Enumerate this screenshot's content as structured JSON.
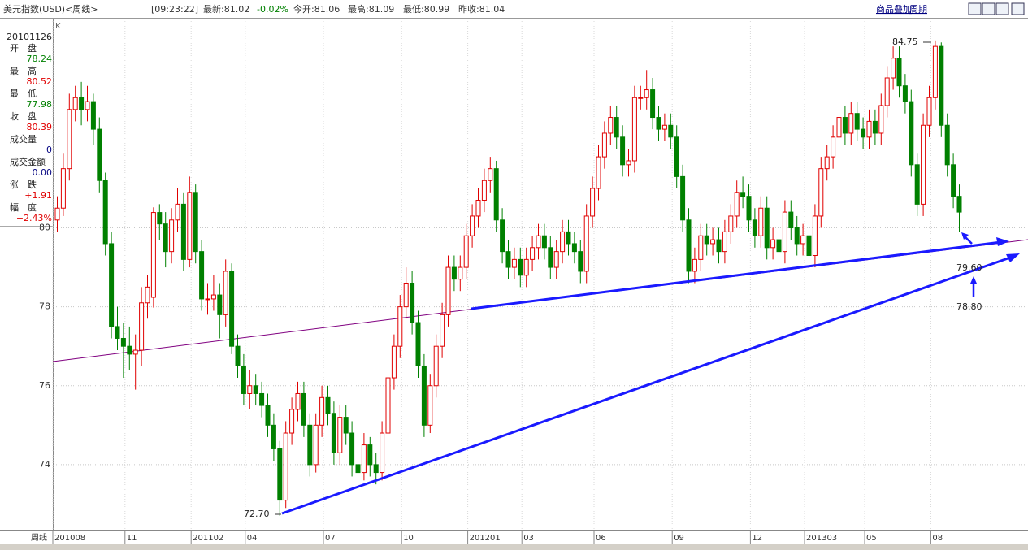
{
  "header": {
    "title": "美元指数(USD)<周线>",
    "time": "[09:23:22]",
    "latest": "最新:81.02",
    "change": "-0.02%",
    "open": "今开:81.06",
    "high": "最高:81.09",
    "low": "最低:80.99",
    "prev_close": "昨收:81.04",
    "overlay_link": "商品叠加",
    "period_link": "周期"
  },
  "info_panel": {
    "date": "20101126",
    "rows": [
      {
        "label": "开　盘",
        "value": "78.24",
        "color": "#008000"
      },
      {
        "label": "最　高",
        "value": "80.52",
        "color": "#e00000"
      },
      {
        "label": "最　低",
        "value": "77.98",
        "color": "#008000"
      },
      {
        "label": "收　盘",
        "value": "80.39",
        "color": "#e00000"
      },
      {
        "label": "成交量",
        "value": "0",
        "color": "#000080"
      },
      {
        "label": "成交金额",
        "value": "0.00",
        "color": "#000080"
      },
      {
        "label": "涨　跌",
        "value": "+1.91",
        "color": "#e00000"
      },
      {
        "label": "幅　度",
        "value": "+2.43%",
        "color": "#e00000"
      }
    ]
  },
  "chart_data": {
    "type": "candlestick",
    "indicator": "K",
    "period_label": "周线",
    "up_color": "#e00000",
    "down_color": "#008000",
    "grid": true,
    "ylim": [
      72.35,
      85.2
    ],
    "yticks": [
      74,
      76,
      78,
      80
    ],
    "categories": [
      "201008",
      null,
      null,
      null,
      null,
      null,
      null,
      null,
      null,
      null,
      null,
      null,
      "11",
      null,
      null,
      null,
      null,
      null,
      null,
      null,
      null,
      null,
      null,
      "201102",
      null,
      null,
      null,
      null,
      null,
      null,
      null,
      null,
      "04",
      null,
      null,
      null,
      null,
      null,
      null,
      null,
      null,
      null,
      null,
      null,
      null,
      "07",
      null,
      null,
      null,
      null,
      null,
      null,
      null,
      null,
      null,
      null,
      null,
      null,
      "10",
      null,
      null,
      null,
      null,
      null,
      null,
      null,
      null,
      null,
      null,
      "201201",
      null,
      null,
      null,
      null,
      null,
      null,
      null,
      null,
      "03",
      null,
      null,
      null,
      null,
      null,
      null,
      null,
      null,
      null,
      null,
      null,
      "06",
      null,
      null,
      null,
      null,
      null,
      null,
      null,
      null,
      null,
      null,
      null,
      null,
      "09",
      null,
      null,
      null,
      null,
      null,
      null,
      null,
      null,
      null,
      null,
      null,
      null,
      "12",
      null,
      null,
      null,
      null,
      null,
      null,
      null,
      null,
      "201303",
      null,
      null,
      null,
      null,
      null,
      null,
      null,
      null,
      null,
      "05",
      null,
      null,
      null,
      null,
      null,
      null,
      null,
      null,
      null,
      null,
      "08",
      null,
      null,
      null,
      null
    ],
    "ohlc": [
      [
        80.2,
        80.8,
        79.9,
        80.5
      ],
      [
        80.5,
        81.9,
        80.3,
        81.5
      ],
      [
        81.5,
        83.4,
        81.2,
        83
      ],
      [
        83,
        83.6,
        82.7,
        83.3
      ],
      [
        83.3,
        83.7,
        82.6,
        83
      ],
      [
        83,
        83.6,
        82.7,
        83.2
      ],
      [
        83.2,
        83.4,
        82.1,
        82.5
      ],
      [
        82.5,
        82.8,
        80.9,
        81.2
      ],
      [
        81.2,
        81.4,
        79.3,
        79.6
      ],
      [
        79.6,
        79.9,
        77.2,
        77.5
      ],
      [
        77.5,
        78,
        76.9,
        77.2
      ],
      [
        77.2,
        77.6,
        76.2,
        77
      ],
      [
        77,
        77.5,
        76.4,
        76.8
      ],
      [
        76.8,
        77.3,
        75.9,
        76.9
      ],
      [
        76.9,
        78.5,
        76.5,
        78.1
      ],
      [
        78.1,
        78.8,
        77.7,
        78.5
      ],
      [
        78.24,
        80.52,
        77.98,
        80.39
      ],
      [
        80.39,
        80.6,
        79.7,
        80.1
      ],
      [
        80.1,
        80.4,
        79,
        79.4
      ],
      [
        79.4,
        80.5,
        79.1,
        80.2
      ],
      [
        80.2,
        81,
        79.9,
        80.6
      ],
      [
        80.6,
        80.9,
        78.9,
        79.2
      ],
      [
        79.2,
        81.3,
        79,
        80.9
      ],
      [
        80.9,
        81.1,
        79.1,
        79.4
      ],
      [
        79.4,
        79.7,
        77.9,
        78.2
      ],
      [
        78.2,
        78.6,
        77.8,
        78.2
      ],
      [
        78.2,
        78.8,
        77.9,
        78.3
      ],
      [
        78.3,
        78.6,
        77.2,
        77.8
      ],
      [
        77.8,
        79.2,
        77.5,
        78.9
      ],
      [
        78.9,
        79.1,
        76.8,
        77
      ],
      [
        77,
        77.3,
        76.2,
        76.5
      ],
      [
        76.5,
        76.8,
        75.5,
        75.8
      ],
      [
        75.8,
        76.4,
        75.4,
        76
      ],
      [
        76,
        76.3,
        75.5,
        75.8
      ],
      [
        75.8,
        76.1,
        75.2,
        75.5
      ],
      [
        75.5,
        75.8,
        74.7,
        75
      ],
      [
        75,
        75.3,
        74.1,
        74.4
      ],
      [
        74.4,
        74.6,
        72.7,
        73.1
      ],
      [
        73.1,
        75.1,
        72.9,
        74.8
      ],
      [
        74.8,
        75.7,
        74.5,
        75.4
      ],
      [
        75.4,
        76.1,
        75.1,
        75.8
      ],
      [
        75.8,
        76.1,
        74.7,
        75
      ],
      [
        75,
        75.3,
        73.7,
        74
      ],
      [
        74,
        75.3,
        73.8,
        75
      ],
      [
        75,
        76,
        74.7,
        75.7
      ],
      [
        75.7,
        76,
        75,
        75.3
      ],
      [
        75.3,
        75.6,
        74,
        74.3
      ],
      [
        74.3,
        75.5,
        74,
        75.2
      ],
      [
        75.2,
        75.5,
        74.5,
        74.8
      ],
      [
        74.8,
        75.1,
        73.7,
        74
      ],
      [
        74,
        74.3,
        73.5,
        73.8
      ],
      [
        73.8,
        74.8,
        73.6,
        74.5
      ],
      [
        74.5,
        74.7,
        73.7,
        74
      ],
      [
        74,
        74.3,
        73.5,
        73.8
      ],
      [
        73.8,
        75.1,
        73.6,
        74.8
      ],
      [
        74.8,
        76.5,
        74.6,
        76.2
      ],
      [
        76.2,
        77.3,
        75.9,
        77
      ],
      [
        77,
        78.3,
        76.7,
        78
      ],
      [
        78,
        79,
        77.7,
        78.6
      ],
      [
        78.6,
        78.9,
        77.3,
        77.6
      ],
      [
        77.6,
        77.9,
        76.2,
        76.5
      ],
      [
        76.5,
        76.8,
        74.7,
        75
      ],
      [
        75,
        76.3,
        74.8,
        76
      ],
      [
        76,
        77.3,
        75.7,
        77
      ],
      [
        77,
        78.1,
        76.7,
        77.8
      ],
      [
        77.8,
        79.3,
        77.5,
        79
      ],
      [
        79,
        79.3,
        78.4,
        78.7
      ],
      [
        78.7,
        79.3,
        78.4,
        79
      ],
      [
        79,
        80.1,
        78.7,
        79.8
      ],
      [
        79.8,
        80.6,
        79.5,
        80.3
      ],
      [
        80.3,
        81,
        80,
        80.7
      ],
      [
        80.7,
        81.5,
        80.4,
        81.2
      ],
      [
        81.2,
        81.8,
        80.9,
        81.5
      ],
      [
        81.5,
        81.7,
        79.9,
        80.2
      ],
      [
        80.2,
        80.5,
        79.1,
        79.4
      ],
      [
        79.4,
        79.7,
        78.7,
        79
      ],
      [
        79,
        79.5,
        78.7,
        79.2
      ],
      [
        79.2,
        79.5,
        78.5,
        78.8
      ],
      [
        78.8,
        79.5,
        78.5,
        79.2
      ],
      [
        79.2,
        79.8,
        78.9,
        79.5
      ],
      [
        79.5,
        80.1,
        79.2,
        79.8
      ],
      [
        79.8,
        80.1,
        79.2,
        79.5
      ],
      [
        79.5,
        79.8,
        78.7,
        79
      ],
      [
        79,
        79.7,
        78.7,
        79.4
      ],
      [
        79.4,
        80.2,
        79.1,
        79.9
      ],
      [
        79.9,
        80.2,
        79.3,
        79.6
      ],
      [
        79.6,
        79.9,
        79.1,
        79.4
      ],
      [
        79.4,
        79.7,
        78.6,
        78.9
      ],
      [
        78.9,
        80.6,
        78.6,
        80.3
      ],
      [
        80.3,
        81.3,
        80,
        81
      ],
      [
        81,
        82.1,
        80.7,
        81.8
      ],
      [
        81.8,
        82.7,
        81.5,
        82.4
      ],
      [
        82.4,
        83.1,
        82.1,
        82.8
      ],
      [
        82.8,
        83.1,
        82,
        82.3
      ],
      [
        82.3,
        82.6,
        81.3,
        81.6
      ],
      [
        81.6,
        82,
        81.3,
        81.7
      ],
      [
        81.7,
        83.6,
        81.4,
        83.3
      ],
      [
        83.3,
        83.6,
        83,
        83.3
      ],
      [
        83.3,
        84,
        83,
        83.5
      ],
      [
        83.5,
        83.8,
        82.5,
        82.8
      ],
      [
        82.8,
        83.1,
        82.2,
        82.5
      ],
      [
        82.5,
        82.9,
        82.2,
        82.6
      ],
      [
        82.6,
        82.9,
        82,
        82.3
      ],
      [
        82.3,
        82.6,
        81,
        81.3
      ],
      [
        81.3,
        81.6,
        79.9,
        80.2
      ],
      [
        80.2,
        80.5,
        78.6,
        78.9
      ],
      [
        78.9,
        79.5,
        78.6,
        79.2
      ],
      [
        79.2,
        80.1,
        78.9,
        79.8
      ],
      [
        79.8,
        80.1,
        79.3,
        79.6
      ],
      [
        79.6,
        80,
        79.3,
        79.7
      ],
      [
        79.7,
        80,
        79.1,
        79.4
      ],
      [
        79.4,
        80.2,
        79.1,
        79.9
      ],
      [
        79.9,
        80.6,
        79.6,
        80.3
      ],
      [
        80.3,
        81.2,
        80,
        80.9
      ],
      [
        80.9,
        81.3,
        80.5,
        80.8
      ],
      [
        80.8,
        81.1,
        79.9,
        80.2
      ],
      [
        80.2,
        80.5,
        79.5,
        79.8
      ],
      [
        79.8,
        80.8,
        79.5,
        80.5
      ],
      [
        80.5,
        80.8,
        79.2,
        79.5
      ],
      [
        79.5,
        80,
        79.2,
        79.7
      ],
      [
        79.7,
        80,
        79.1,
        79.4
      ],
      [
        79.4,
        80.7,
        79.1,
        80.4
      ],
      [
        80.4,
        80.7,
        79.7,
        80
      ],
      [
        80,
        80.3,
        79.3,
        79.6
      ],
      [
        79.6,
        80.1,
        79.3,
        79.8
      ],
      [
        79.8,
        80.1,
        79,
        79.3
      ],
      [
        79.3,
        80.6,
        79,
        80.3
      ],
      [
        80.3,
        81.8,
        80,
        81.5
      ],
      [
        81.5,
        82.1,
        81.2,
        81.8
      ],
      [
        81.8,
        82.6,
        81.5,
        82.3
      ],
      [
        82.3,
        83.1,
        82,
        82.8
      ],
      [
        82.8,
        83.1,
        82.1,
        82.4
      ],
      [
        82.4,
        83.2,
        82.1,
        82.9
      ],
      [
        82.9,
        83.2,
        82.2,
        82.5
      ],
      [
        82.5,
        82.8,
        82,
        82.3
      ],
      [
        82.3,
        83,
        82,
        82.7
      ],
      [
        82.7,
        83,
        82.1,
        82.4
      ],
      [
        82.4,
        83.4,
        82.1,
        83.1
      ],
      [
        83.1,
        84.1,
        82.8,
        83.8
      ],
      [
        83.8,
        84.6,
        83.5,
        84.3
      ],
      [
        84.3,
        84.6,
        83.3,
        83.6
      ],
      [
        83.6,
        83.9,
        82.9,
        83.2
      ],
      [
        83.2,
        83.5,
        81.3,
        81.6
      ],
      [
        81.6,
        81.9,
        80.3,
        80.6
      ],
      [
        80.6,
        82.9,
        80.3,
        82.6
      ],
      [
        82.6,
        83.6,
        82.3,
        83.3
      ],
      [
        83.3,
        84.75,
        83,
        84.6
      ],
      [
        84.6,
        84.7,
        82.3,
        82.6
      ],
      [
        82.6,
        82.9,
        81.3,
        81.6
      ],
      [
        81.6,
        81.9,
        80.5,
        80.8
      ],
      [
        80.8,
        81.1,
        79.9,
        80.4
      ]
    ],
    "annotations": [
      "84.75",
      "72.70",
      "79.60",
      "78.80"
    ]
  }
}
